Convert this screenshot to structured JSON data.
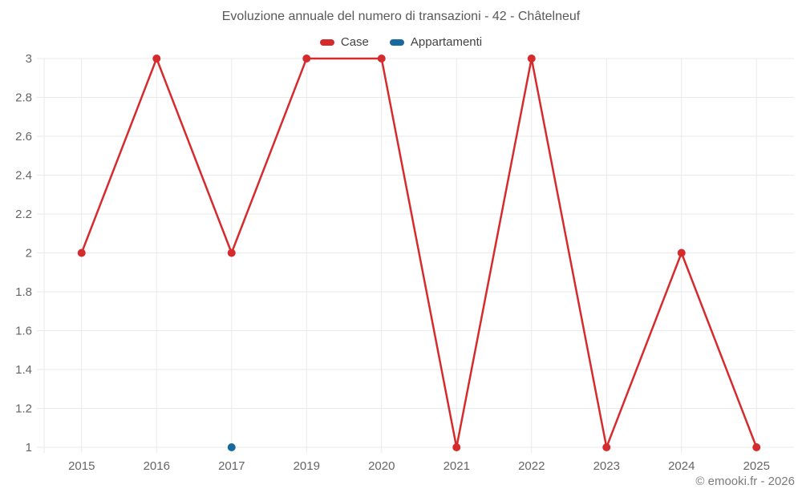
{
  "title": "Evoluzione annuale del numero di transazioni - 42 - Châtelneuf",
  "watermark": "© emooki.fr - 2026",
  "chart_data": {
    "type": "line",
    "title": "Evoluzione annuale del numero di transazioni - 42 - Châtelneuf",
    "categories": [
      "2015",
      "2016",
      "2017",
      "2019",
      "2020",
      "2021",
      "2022",
      "2023",
      "2024",
      "2025"
    ],
    "series": [
      {
        "name": "Case",
        "color": "#d62b2d",
        "values": [
          2,
          3,
          2,
          3,
          3,
          1,
          3,
          1,
          2,
          1
        ]
      },
      {
        "name": "Appartamenti",
        "color": "#17699e",
        "values": [
          null,
          null,
          1,
          null,
          null,
          null,
          null,
          null,
          null,
          null
        ]
      }
    ],
    "xlabel": "",
    "ylabel": "",
    "ylim": [
      1,
      3
    ],
    "y_ticks": [
      "1",
      "1.2",
      "1.4",
      "1.6",
      "1.8",
      "2",
      "2.2",
      "2.4",
      "2.6",
      "2.8",
      "3"
    ],
    "grid": true,
    "grid_color": "#eaeaea",
    "axis_text_color": "#666666",
    "legend_position": "top"
  }
}
